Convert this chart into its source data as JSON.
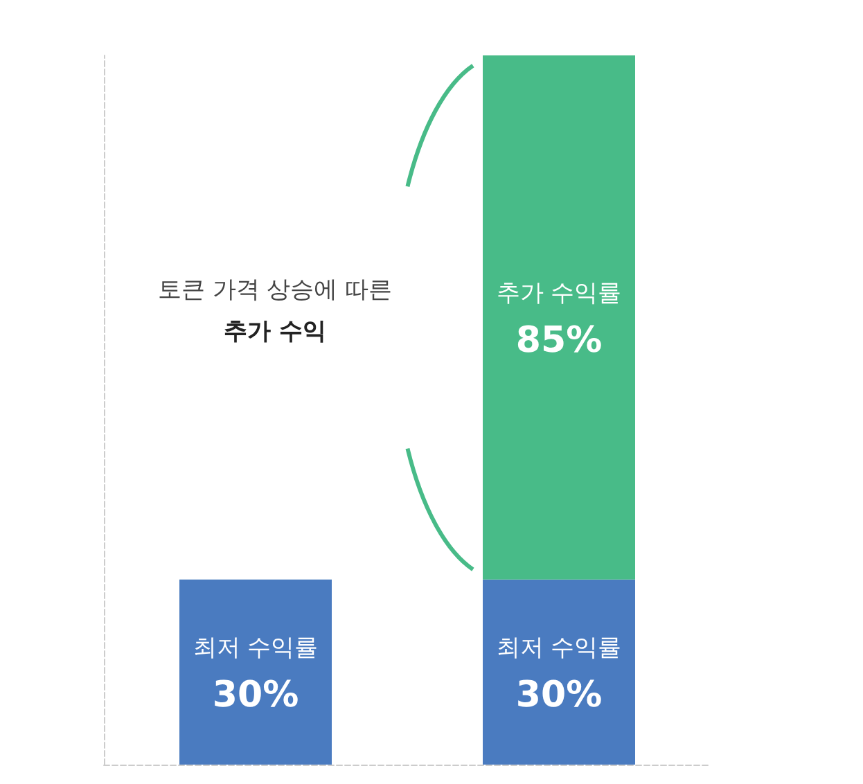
{
  "chart_data": {
    "type": "bar",
    "categories": [
      null,
      null
    ],
    "stacked": true,
    "series": [
      {
        "name": "최저 수익률",
        "color": "#4a7bc0",
        "values": [
          30,
          30
        ],
        "value_labels": [
          "30%",
          "30%"
        ]
      },
      {
        "name": "추가 수익률",
        "color": "#48bb88",
        "values": [
          null,
          85
        ],
        "value_labels": [
          null,
          "85%"
        ]
      }
    ],
    "annotations": [
      "토큰 가격 상승에 따른\n추가 수익"
    ],
    "data_labels": true,
    "tick_labels": false,
    "grid": false,
    "legend": false
  }
}
